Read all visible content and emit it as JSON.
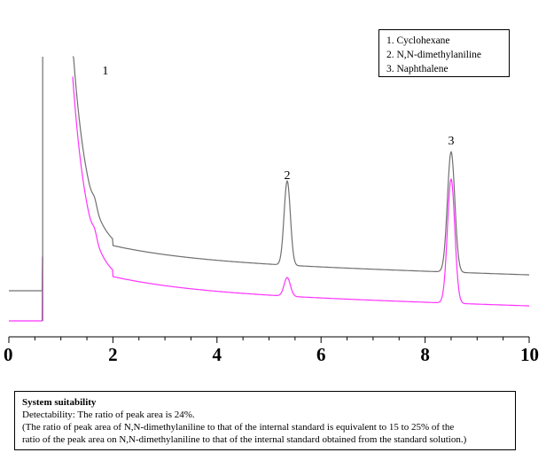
{
  "legend": [
    "1. Cyclohexane",
    "2. N,N-dimethylaniline",
    "3. Naphthalene"
  ],
  "note": {
    "heading": "System suitability",
    "line1": "Detectability: The ratio of peak area is 24%.",
    "line2": "(The ratio of peak area of N,N-dimethylaniline to that of the internal standard is equivalent to 15 to 25% of the",
    "line3": "ratio of the peak area on N,N-dimethylaniline to that of the internal standard obtained from the standard solution.)"
  },
  "chart_data": {
    "type": "line",
    "xlim": [
      0,
      10
    ],
    "x_ticks": [
      "0",
      "2",
      "4",
      "6",
      "8",
      "10"
    ],
    "peak_labels": [
      {
        "text": "1",
        "x": 1.65
      },
      {
        "text": "2",
        "x": 5.35
      },
      {
        "text": "3",
        "x": 8.5
      }
    ],
    "colors": {
      "upper": "#707070",
      "lower": "#ff33ff",
      "axis": "#000000"
    },
    "series": [
      {
        "color_key": "upper",
        "peaks": [
          {
            "x": 0.65,
            "height": 1.0,
            "width": 0.012
          },
          {
            "x": 5.35,
            "height": 0.55,
            "width": 0.085
          },
          {
            "x": 8.5,
            "height": 0.72,
            "width": 0.1
          }
        ],
        "solvent_front": 1.22
      },
      {
        "color_key": "lower",
        "peaks": [
          {
            "x": 0.65,
            "height": 1.0,
            "width": 0.012
          },
          {
            "x": 5.35,
            "height": 0.12,
            "width": 0.085
          },
          {
            "x": 8.5,
            "height": 0.75,
            "width": 0.1
          }
        ],
        "solvent_front": 1.22
      }
    ],
    "grid": false
  }
}
